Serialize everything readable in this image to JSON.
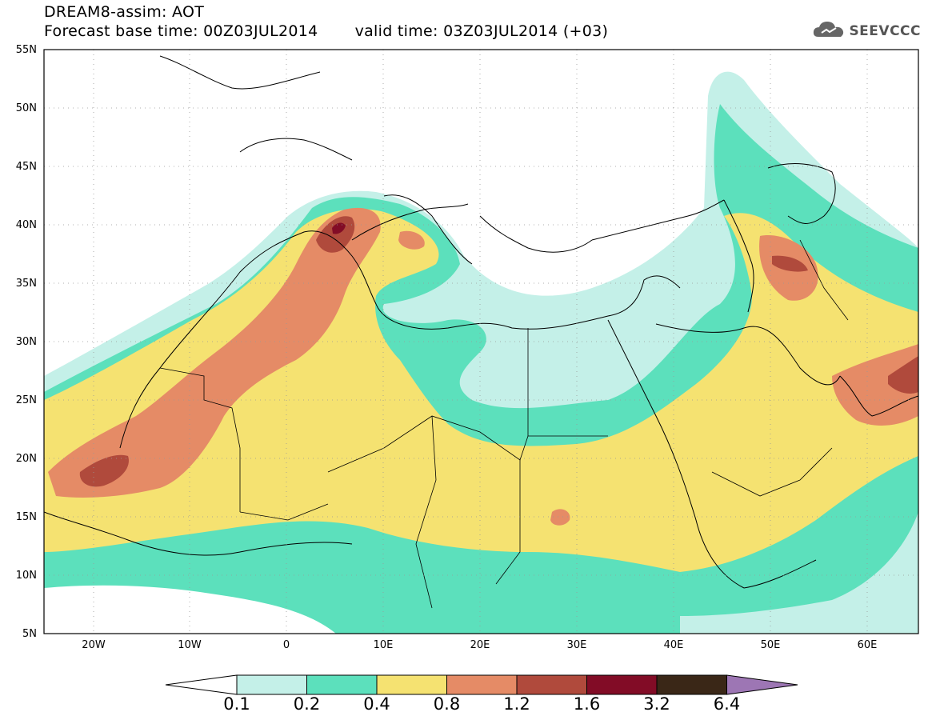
{
  "title": {
    "line1": "DREAM8-assim: AOT",
    "base_time": "Forecast base time: 00Z03JUL2014",
    "valid_time": "valid time: 03Z03JUL2014 (+03)"
  },
  "logo": {
    "text": "SEEVCCC",
    "icon": "cloud-icon"
  },
  "map": {
    "variable": "AOT",
    "lon_range": [
      "25W",
      "65E"
    ],
    "lat_range": [
      "5N",
      "55N"
    ],
    "gridlines": "dotted",
    "y_ticks": [
      "55N",
      "50N",
      "45N",
      "40N",
      "35N",
      "30N",
      "25N",
      "20N",
      "15N",
      "10N",
      "5N"
    ],
    "x_ticks": [
      "20W",
      "10W",
      "0",
      "10E",
      "20E",
      "30E",
      "40E",
      "50E",
      "60E"
    ]
  },
  "colorbar": {
    "labels": [
      "0.1",
      "0.2",
      "0.4",
      "0.8",
      "1.2",
      "1.6",
      "3.2",
      "6.4"
    ],
    "colors": [
      "#ffffff",
      "#c4f0e8",
      "#5ce0bc",
      "#f5e271",
      "#e58b66",
      "#b04a3c",
      "#820c26",
      "#3a2717",
      "#9d76b4"
    ]
  }
}
